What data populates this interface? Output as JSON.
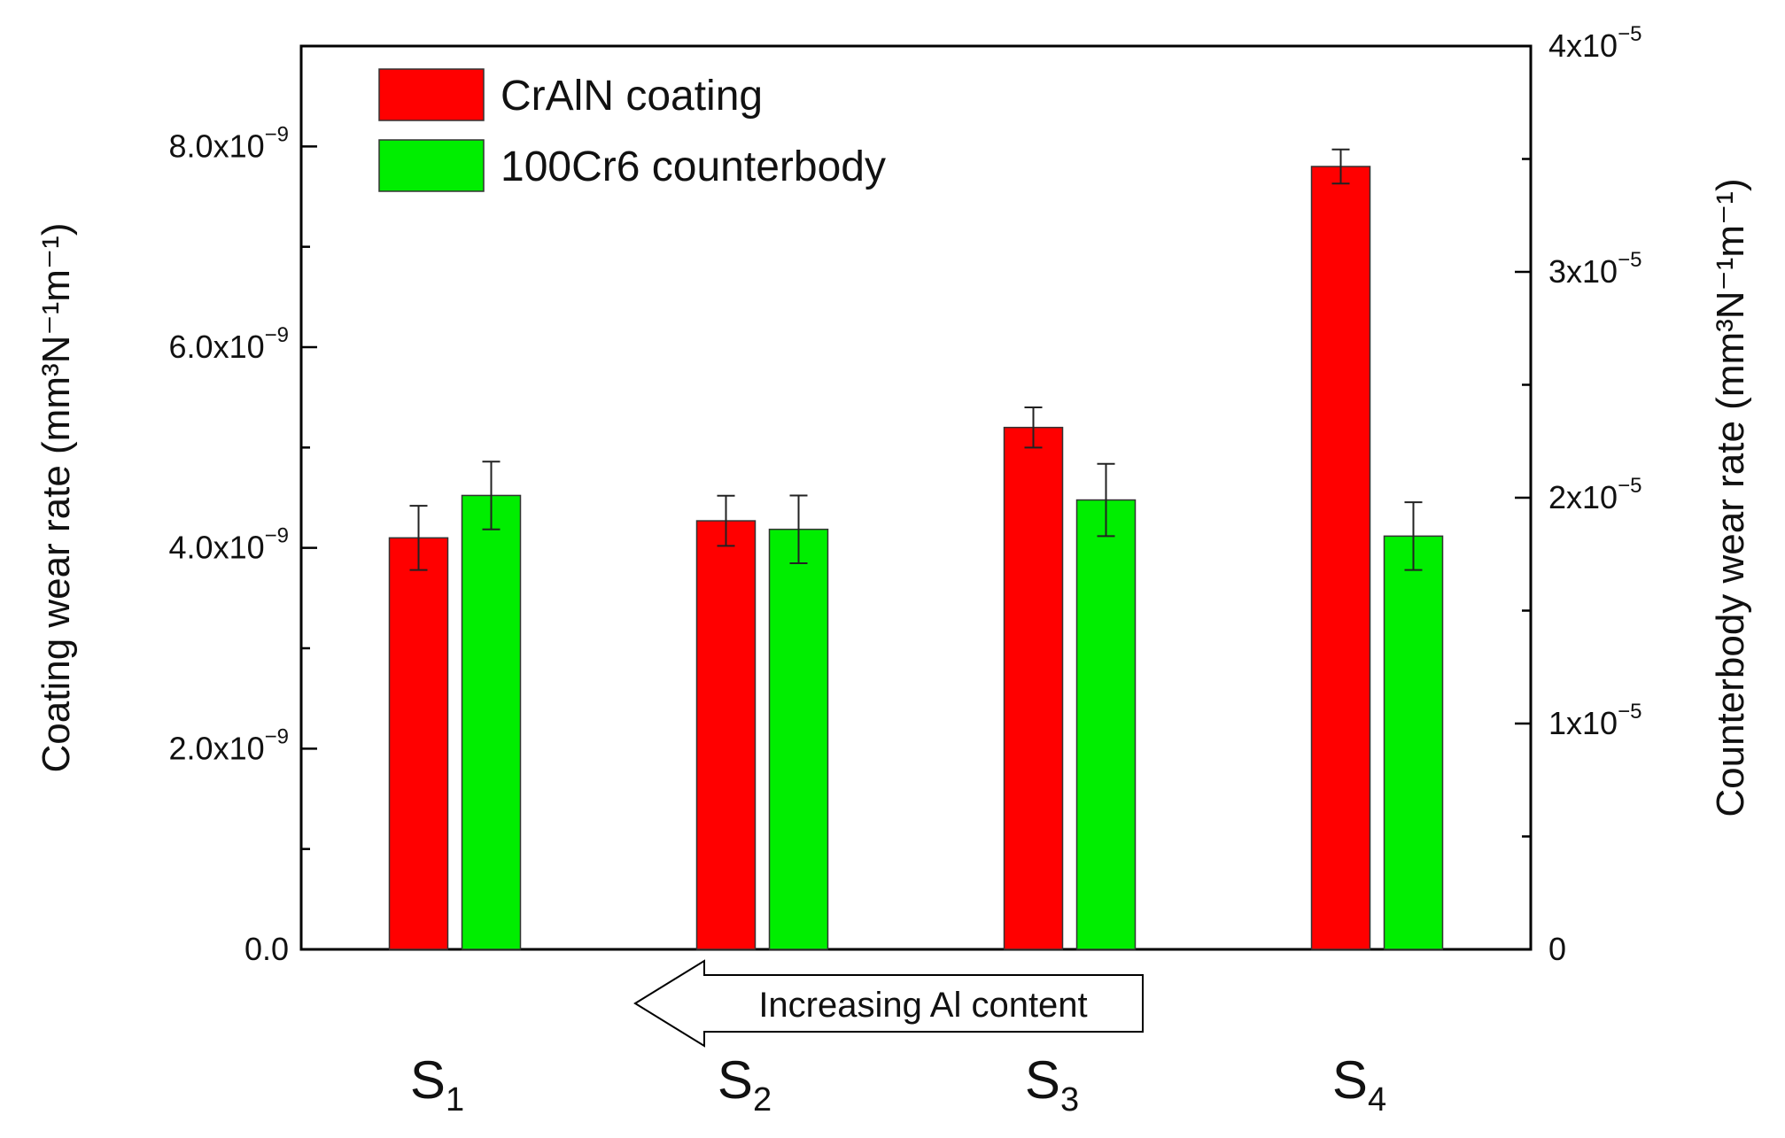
{
  "chart_data": {
    "type": "bar",
    "categories": [
      {
        "base": "S",
        "sub": "1"
      },
      {
        "base": "S",
        "sub": "2"
      },
      {
        "base": "S",
        "sub": "3"
      },
      {
        "base": "S",
        "sub": "4"
      }
    ],
    "series": [
      {
        "name": "CrAlN coating",
        "axis": "left",
        "color": "#ff0000",
        "values": [
          4.1e-09,
          4.27e-09,
          5.2e-09,
          7.8e-09
        ],
        "errors": [
          3.2e-10,
          2.5e-10,
          2e-10,
          1.7e-10
        ]
      },
      {
        "name": "100Cr6 counterbody",
        "axis": "right",
        "color": "#00ee00",
        "values": [
          2.01e-05,
          1.86e-05,
          1.99e-05,
          1.83e-05
        ],
        "errors": [
          1.5e-06,
          1.5e-06,
          1.6e-06,
          1.5e-06
        ]
      }
    ],
    "left_axis": {
      "title": "Coating wear rate (mm³N⁻¹m⁻¹)",
      "ylim": [
        0,
        9e-09
      ],
      "ticks": [
        {
          "value": 0,
          "mant": "0.0",
          "exp": ""
        },
        {
          "value": 2e-09,
          "mant": "2.0x10",
          "exp": "−9"
        },
        {
          "value": 4e-09,
          "mant": "4.0x10",
          "exp": "−9"
        },
        {
          "value": 6e-09,
          "mant": "6.0x10",
          "exp": "−9"
        },
        {
          "value": 8e-09,
          "mant": "8.0x10",
          "exp": "−9"
        }
      ]
    },
    "right_axis": {
      "title": "Counterbody wear rate (mm³N⁻¹m⁻¹)",
      "ylim": [
        0,
        4e-05
      ],
      "ticks": [
        {
          "value": 0,
          "mant": "0",
          "exp": ""
        },
        {
          "value": 1e-05,
          "mant": "1x10",
          "exp": "−5"
        },
        {
          "value": 2e-05,
          "mant": "2x10",
          "exp": "−5"
        },
        {
          "value": 3e-05,
          "mant": "3x10",
          "exp": "−5"
        },
        {
          "value": 4e-05,
          "mant": "4x10",
          "exp": "−5"
        }
      ]
    },
    "annotation": "Increasing Al content",
    "legend_position": "top-left"
  }
}
